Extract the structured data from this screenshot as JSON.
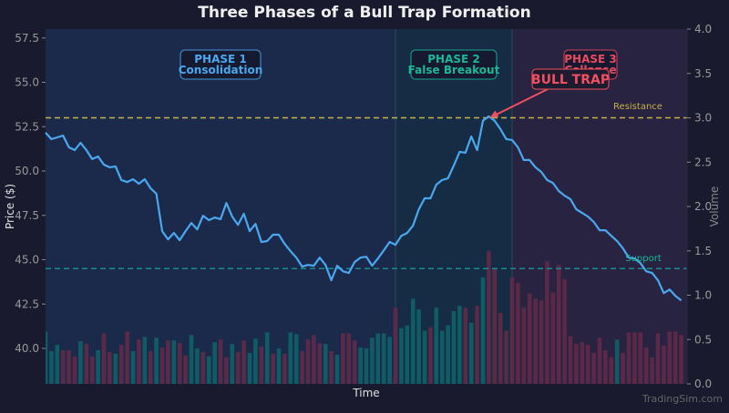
{
  "chart_data": {
    "type": "line",
    "title": "Three Phases of a Bull Trap Formation",
    "xlabel": "Time",
    "ylabel": "Price ($)",
    "y2label": "Volume",
    "xlim": [
      0,
      110
    ],
    "ylim": [
      38,
      58
    ],
    "y2lim": [
      0,
      4
    ],
    "yticks": [
      "40.0",
      "42.5",
      "45.0",
      "47.5",
      "50.0",
      "52.5",
      "55.0",
      "57.5"
    ],
    "y2ticks": [
      "0.0",
      "0.5",
      "1.0",
      "1.5",
      "2.0",
      "2.5",
      "3.0",
      "3.5",
      "4.0"
    ],
    "grid": false,
    "price": [
      52.16,
      51.8,
      51.9,
      52.0,
      51.34,
      51.18,
      51.59,
      51.18,
      50.67,
      50.82,
      50.36,
      50.21,
      50.26,
      49.49,
      49.38,
      49.54,
      49.28,
      49.54,
      49.03,
      48.72,
      46.61,
      46.15,
      46.51,
      46.1,
      46.61,
      47.07,
      46.71,
      47.48,
      47.23,
      47.38,
      47.28,
      48.2,
      47.43,
      46.97,
      47.59,
      46.61,
      47.02,
      46.0,
      46.05,
      46.41,
      46.41,
      45.89,
      45.48,
      45.12,
      44.61,
      44.71,
      44.66,
      45.12,
      44.71,
      43.84,
      44.66,
      44.35,
      44.25,
      44.87,
      45.12,
      45.17,
      44.66,
      45.07,
      45.53,
      46.0,
      45.84,
      46.35,
      46.51,
      46.92,
      47.84,
      48.46,
      48.46,
      49.23,
      49.49,
      49.59,
      50.31,
      51.08,
      51.03,
      51.95,
      51.18,
      52.83,
      53.08,
      52.83,
      52.36,
      51.8,
      51.75,
      51.34,
      50.62,
      50.62,
      50.21,
      49.95,
      49.49,
      49.33,
      48.87,
      48.61,
      48.41,
      47.84,
      47.64,
      47.43,
      47.13,
      46.66,
      46.66,
      46.35,
      46.05,
      45.64,
      45.12,
      45.07,
      44.81,
      44.35,
      44.25,
      43.84,
      43.12,
      43.32,
      42.96,
      42.71
    ],
    "volume": [
      0.59,
      0.37,
      0.44,
      0.38,
      0.38,
      0.31,
      0.48,
      0.45,
      0.31,
      0.38,
      0.57,
      0.36,
      0.34,
      0.44,
      0.59,
      0.37,
      0.5,
      0.53,
      0.37,
      0.52,
      0.41,
      0.49,
      0.49,
      0.46,
      0.32,
      0.55,
      0.4,
      0.36,
      0.31,
      0.47,
      0.5,
      0.3,
      0.45,
      0.36,
      0.49,
      0.35,
      0.51,
      0.42,
      0.58,
      0.34,
      0.4,
      0.34,
      0.58,
      0.56,
      0.37,
      0.5,
      0.55,
      0.46,
      0.45,
      0.37,
      0.33,
      0.57,
      0.57,
      0.49,
      0.41,
      0.4,
      0.52,
      0.57,
      0.57,
      0.53,
      0.86,
      0.63,
      0.66,
      0.96,
      0.84,
      0.6,
      0.64,
      0.86,
      0.6,
      0.66,
      0.82,
      0.88,
      0.86,
      0.69,
      0.88,
      1.2,
      1.5,
      1.3,
      0.8,
      0.6,
      1.2,
      1.14,
      0.86,
      1.02,
      0.96,
      0.94,
      1.38,
      1.03,
      1.34,
      1.18,
      0.54,
      0.45,
      0.47,
      0.44,
      0.35,
      0.52,
      0.38,
      0.3,
      0.5,
      0.35,
      0.58,
      0.58,
      0.58,
      0.41,
      0.3,
      0.57,
      0.43,
      0.59,
      0.59,
      0.55
    ],
    "volume_direction": "uuuddduddudduddudududdudduuduuddudduudududuuddddududdduuuuuuduuuuuduuuuudududdddddddddddddddddddddudddddddddddud",
    "phases": [
      {
        "label": "PHASE 1",
        "sublabel": "Consolidation",
        "start": 0,
        "end": 60,
        "color": "#4aa8f0",
        "bg": "#1b2a4a"
      },
      {
        "label": "PHASE 2",
        "sublabel": "False Breakout",
        "start": 60,
        "end": 80,
        "color": "#1ab89a",
        "bg": "#152c44"
      },
      {
        "label": "PHASE 3",
        "sublabel": "Collapse",
        "start": 80,
        "end": 110,
        "color": "#e84a5f",
        "bg": "#272340"
      }
    ],
    "resistance": {
      "value": 53.0,
      "label": "Resistance",
      "color": "#c8b04a"
    },
    "support": {
      "value": 44.5,
      "label": "Support",
      "color": "#1ab89a"
    },
    "annotation": {
      "text": "BULL TRAP",
      "x": 76,
      "y": 53.0,
      "color": "#f0505f"
    },
    "colors": {
      "line": "#4aa8f0",
      "volume_up": "#0f5f66",
      "volume_down": "#5e2a48"
    }
  },
  "watermark": "TradingSim.com"
}
